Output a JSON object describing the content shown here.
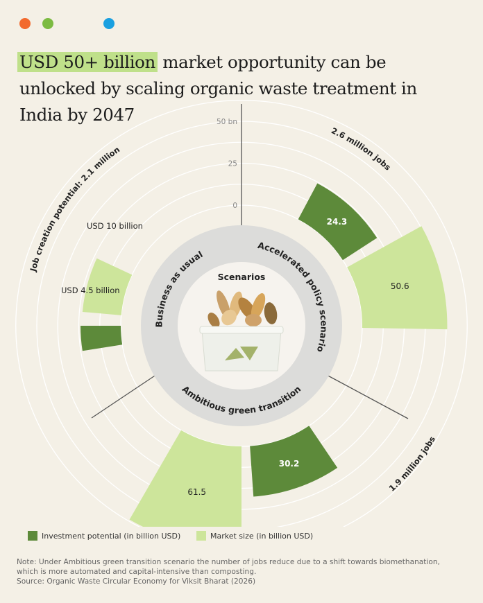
{
  "header": {
    "title_highlight": "USD 50+ billion",
    "title_rest": " market opportunity can be unlocked by scaling organic waste treatment in India by 2047"
  },
  "colors": {
    "background": "#f4f0e6",
    "investment": "#5d8a3a",
    "market": "#cde59b",
    "highlight": "#bfe08a",
    "ring": "#dcdcda",
    "dot_orange": "#f26a2e",
    "dot_green": "#7cbb42",
    "dot_blue": "#1aa0e0"
  },
  "chart_data": {
    "type": "radial-bar",
    "center_label": "Scenarios",
    "axis_ticks": [
      "0",
      "25",
      "50 bn"
    ],
    "scale_max": 50,
    "scenarios": [
      {
        "name": "Business as usual",
        "jobs_label": "Job creation potential: 2.1 million",
        "investment": 4.5,
        "market": 10,
        "investment_label": "USD 4.5 billion",
        "market_label": "USD 10 billion"
      },
      {
        "name": "Accelerated policy scenario",
        "jobs_label": "2.6 million jobs",
        "investment": 24.3,
        "market": 50.6,
        "investment_label": "24.3",
        "market_label": "50.6"
      },
      {
        "name": "Ambitious green transition",
        "jobs_label": "1.9 million jobs",
        "investment": 30.2,
        "market": 61.5,
        "investment_label": "30.2",
        "market_label": "61.5"
      }
    ],
    "legend": [
      "Investment potential (in billion USD)",
      "Market size (in billion USD)"
    ]
  },
  "note": "Note: Under Ambitious green transition scenario the number of jobs reduce due to a shift towards biomethanation, which is more automated and capital-intensive than composting.",
  "source": "Source: Organic Waste Circular Economy for Viksit Bharat (2026)"
}
